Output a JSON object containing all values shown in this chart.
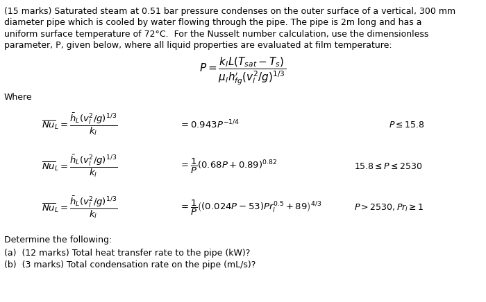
{
  "background_color": "#ffffff",
  "text_color": "#000000",
  "fig_width": 7.0,
  "fig_height": 4.36,
  "dpi": 100,
  "intro_lines": [
    "(15 marks) Saturated steam at 0.51 bar pressure condenses on the outer surface of a vertical, 300 mm",
    "diameter pipe which is cooled by water flowing through the pipe. The pipe is 2m long and has a",
    "uniform surface temperature of 72°C.  For the Nusselt number calculation, use the dimensionless",
    "parameter, P, given below, where all liquid properties are evaluated at film temperature:"
  ],
  "formula_P": "$P = \\dfrac{k_l L(T_{sat} - T_s)}{\\mu_l h^{\\prime}_{fg}(v_l^2/g)^{1/3}}$",
  "where_label": "Where",
  "eq1_lhs": "$\\overline{Nu}_{L} = \\dfrac{\\bar{h}_L(v_l^2/g)^{1/3}}{k_l}$",
  "eq1_rhs": "$= 0.943P^{-1/4}$",
  "eq1_cond": "$P \\leq 15.8$",
  "eq2_lhs": "$\\overline{Nu}_{L} = \\dfrac{\\bar{h}_L(v_l^2/g)^{1/3}}{k_l}$",
  "eq2_rhs": "$= \\dfrac{1}{P}(0.68P + 0.89)^{0.82}$",
  "eq2_cond": "$15.8 \\leq P \\leq 2530$",
  "eq3_lhs": "$\\overline{Nu}_{L} = \\dfrac{\\bar{h}_L(v_l^2/g)^{1/3}}{k_l}$",
  "eq3_rhs": "$= \\dfrac{1}{P}\\left((0.024P - 53)Pr_l^{0.5} + 89\\right)^{4/3}$",
  "eq3_cond": "$P > 2530, Pr_l \\geq 1$",
  "determine_text": "Determine the following:",
  "part_a": "(a)  (12 marks) Total heat transfer rate to the pipe (kW)?",
  "part_b": "(b)  (3 marks) Total condensation rate on the pipe (mL/s)?",
  "fontsize_main": 9.0,
  "fontsize_eq": 9.5,
  "fontsize_cond": 9.0
}
